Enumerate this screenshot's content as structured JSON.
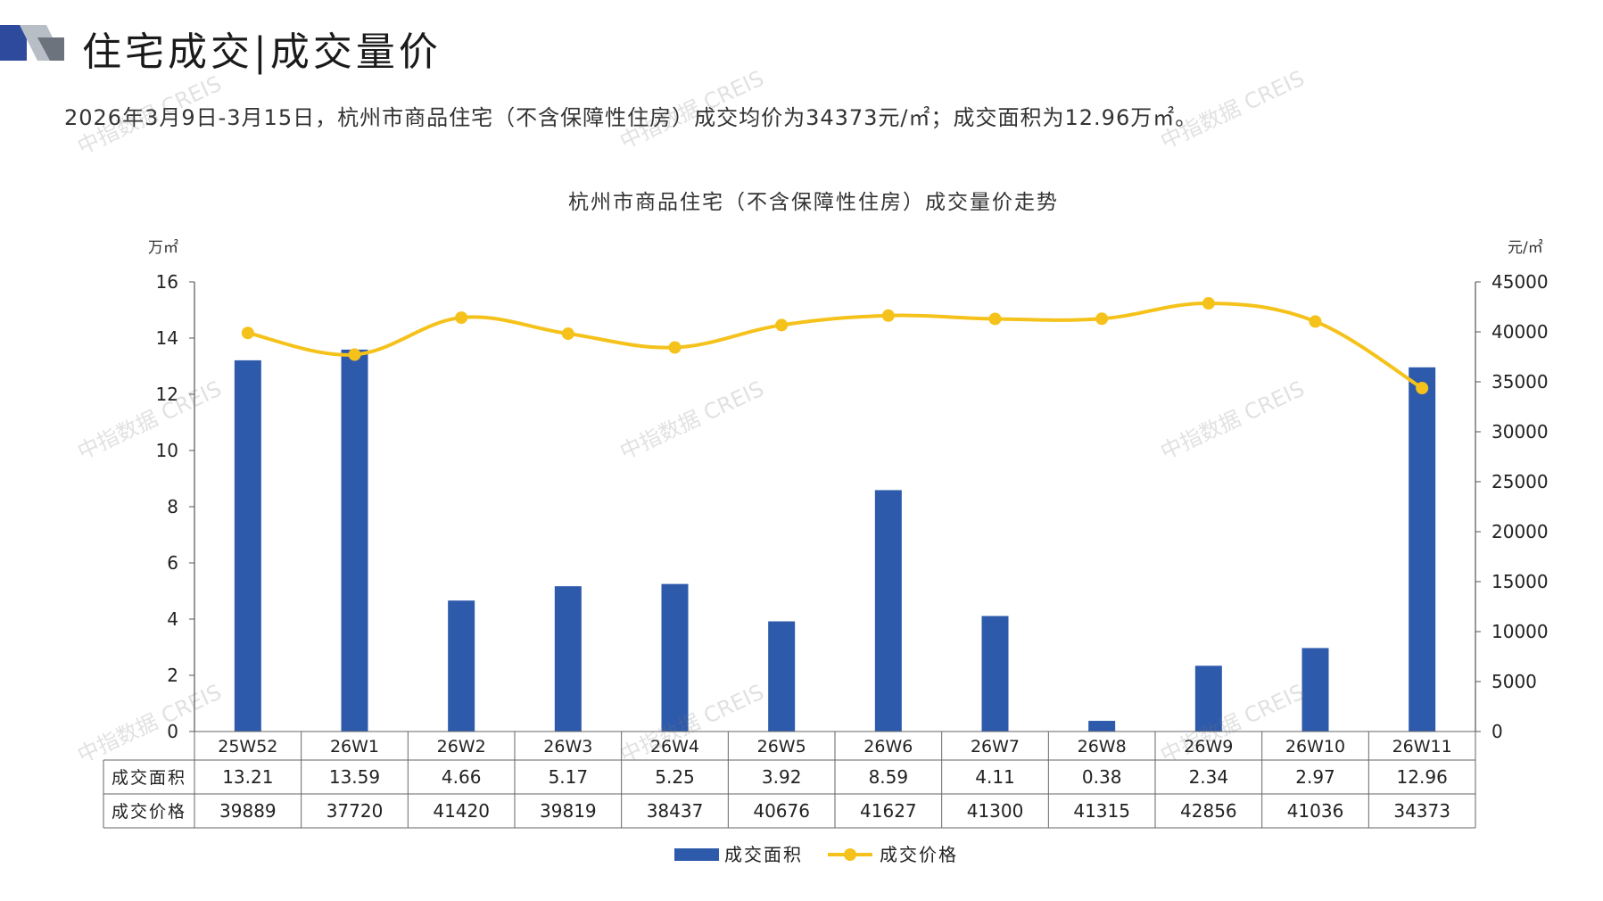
{
  "header": {
    "title": "住宅成交|成交量价",
    "summary": "2026年3月9日-3月15日，杭州市商品住宅（不含保障性住房）成交均价为34373元/㎡；成交面积为12.96万㎡。"
  },
  "watermark": "中指数据 CREIS",
  "colors": {
    "bar": "#2E5AAC",
    "line": "#F5C21B",
    "logo_dark": "#2E4A9C",
    "logo_grey": "#9AA0A6"
  },
  "chart_data": {
    "type": "bar+line",
    "title": "杭州市商品住宅（不含保障性住房）成交量价走势",
    "left_axis": {
      "unit": "万㎡",
      "range": [
        0,
        16
      ],
      "ticks": [
        0,
        2,
        4,
        6,
        8,
        10,
        12,
        14,
        16
      ]
    },
    "right_axis": {
      "unit": "元/㎡",
      "range": [
        0,
        45000
      ],
      "ticks": [
        0,
        5000,
        10000,
        15000,
        20000,
        25000,
        30000,
        35000,
        40000,
        45000
      ]
    },
    "categories": [
      "25W52",
      "26W1",
      "26W2",
      "26W3",
      "26W4",
      "26W5",
      "26W6",
      "26W7",
      "26W8",
      "26W9",
      "26W10",
      "26W11"
    ],
    "series": [
      {
        "name": "成交面积",
        "type": "bar",
        "axis": "left",
        "values": [
          13.21,
          13.59,
          4.66,
          5.17,
          5.25,
          3.92,
          8.59,
          4.11,
          0.38,
          2.34,
          2.97,
          12.96
        ],
        "labels": [
          "13.21",
          "13.59",
          "4.66",
          "5.17",
          "5.25",
          "3.92",
          "8.59",
          "4.11",
          "0.38",
          "2.34",
          "2.97",
          "12.96"
        ]
      },
      {
        "name": "成交价格",
        "type": "line",
        "axis": "right",
        "values": [
          39889,
          37720,
          41420,
          39819,
          38437,
          40676,
          41627,
          41300,
          41315,
          42856,
          41036,
          34373
        ]
      }
    ],
    "grid": false,
    "legend_position": "bottom",
    "data_table": true
  }
}
